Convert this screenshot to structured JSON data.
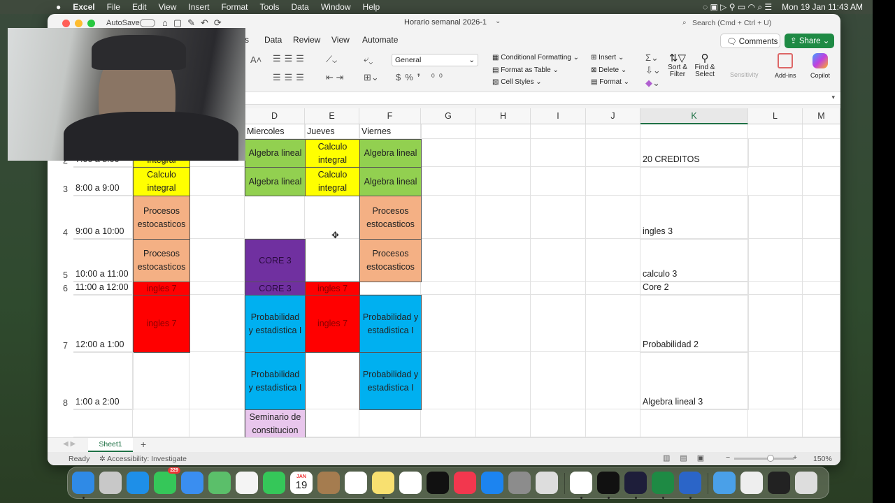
{
  "menubar": {
    "apple": "",
    "app": "Excel",
    "items": [
      "File",
      "Edit",
      "View",
      "Insert",
      "Format",
      "Tools",
      "Data",
      "Window",
      "Help"
    ],
    "datetime": "Mon 19 Jan  11:43 AM"
  },
  "window": {
    "autosave": "AutoSave",
    "title": "Horario semanal 2026-1",
    "search_placeholder": "Search (Cmd + Ctrl + U)",
    "tabs": [
      "s",
      "Data",
      "Review",
      "View",
      "Automate"
    ],
    "comments": "Comments",
    "share": "Share"
  },
  "ribbon": {
    "number_format": "General",
    "conditional_formatting": "Conditional Formatting",
    "format_as_table": "Format as Table",
    "cell_styles": "Cell Styles",
    "insert": "Insert",
    "delete": "Delete",
    "format": "Format",
    "sort_filter": "Sort & Filter",
    "find_select": "Find & Select",
    "sensitivity": "Sensitivity",
    "addins": "Add-ins",
    "copilot": "Copilot"
  },
  "grid": {
    "columns": [
      "D",
      "E",
      "F",
      "G",
      "H",
      "I",
      "J",
      "K",
      "L",
      "M"
    ],
    "selected_column": "K",
    "rows": [
      "2",
      "3",
      "4",
      "5",
      "6",
      "7",
      "8"
    ],
    "fills": {
      "green": "#92d050",
      "yellow": "#ffff00",
      "salmon": "#f4b084",
      "purple": "#7030a0",
      "red": "#ff0000",
      "cyan": "#00b0f0",
      "lavender": "#e8c6ec"
    },
    "cells": [
      {
        "ref": "D1",
        "text": "Miercoles"
      },
      {
        "ref": "E1",
        "text": "Jueves"
      },
      {
        "ref": "F1",
        "text": "Viernes"
      },
      {
        "ref": "A2",
        "text": "7:00 a 8:00"
      },
      {
        "ref": "B2",
        "text": "Calculo integral",
        "fill": "yellow"
      },
      {
        "ref": "D2",
        "text": "Algebra lineal",
        "fill": "green"
      },
      {
        "ref": "E2",
        "text": "Calculo integral",
        "fill": "yellow"
      },
      {
        "ref": "F2",
        "text": "Algebra lineal",
        "fill": "green"
      },
      {
        "ref": "K2",
        "text": "20 CREDITOS"
      },
      {
        "ref": "A3",
        "text": "8:00 a 9:00"
      },
      {
        "ref": "B3",
        "text": "Calculo integral",
        "fill": "yellow"
      },
      {
        "ref": "D3",
        "text": "Algebra lineal",
        "fill": "green"
      },
      {
        "ref": "E3",
        "text": "Calculo integral",
        "fill": "yellow"
      },
      {
        "ref": "F3",
        "text": "Algebra lineal",
        "fill": "green"
      },
      {
        "ref": "A4",
        "text": "9:00 a 10:00"
      },
      {
        "ref": "B4",
        "text": "Procesos estocasticos",
        "fill": "salmon"
      },
      {
        "ref": "F4",
        "text": "Procesos estocasticos",
        "fill": "salmon"
      },
      {
        "ref": "K4",
        "text": "ingles 3"
      },
      {
        "ref": "A5",
        "text": "10:00 a 11:00"
      },
      {
        "ref": "B5",
        "text": "Procesos estocasticos",
        "fill": "salmon"
      },
      {
        "ref": "D5",
        "text": "CORE 3",
        "fill": "purple"
      },
      {
        "ref": "F5",
        "text": "Procesos estocasticos",
        "fill": "salmon"
      },
      {
        "ref": "K5",
        "text": "calculo 3"
      },
      {
        "ref": "A6",
        "text": "11:00 a 12:00"
      },
      {
        "ref": "B6",
        "text": "ingles 7",
        "fill": "red"
      },
      {
        "ref": "D6",
        "text": "CORE 3",
        "fill": "purple"
      },
      {
        "ref": "E6",
        "text": "ingles 7",
        "fill": "red"
      },
      {
        "ref": "K6",
        "text": "Core 2"
      },
      {
        "ref": "A7",
        "text": "12:00 a 1:00"
      },
      {
        "ref": "B7",
        "text": "ingles 7",
        "fill": "red"
      },
      {
        "ref": "D7",
        "text": "Probabilidad y estadistica I",
        "fill": "cyan"
      },
      {
        "ref": "E7",
        "text": "ingles 7",
        "fill": "red"
      },
      {
        "ref": "F7",
        "text": "Probabilidad y estadistica I",
        "fill": "cyan"
      },
      {
        "ref": "K7",
        "text": "Probabilidad 2"
      },
      {
        "ref": "A8",
        "text": "1:00 a 2:00"
      },
      {
        "ref": "D8",
        "text": "Probabilidad y estadistica I",
        "fill": "cyan"
      },
      {
        "ref": "F8",
        "text": "Probabilidad y estadistica I",
        "fill": "cyan"
      },
      {
        "ref": "K8",
        "text": "Algebra lineal 3"
      },
      {
        "ref": "D9",
        "text": "Seminario de constitucion",
        "fill": "lavender"
      }
    ]
  },
  "sheets": {
    "tabs": [
      "Sheet1"
    ],
    "add": "+"
  },
  "status": {
    "ready": "Ready",
    "accessibility": "Accessibility: Investigate",
    "zoom": "150%",
    "zoom_level": 0.6
  },
  "dock": {
    "messages_badge": "229",
    "calendar_month": "JAN",
    "calendar_day": "19",
    "apps": [
      "finder",
      "launchpad",
      "safari",
      "messages",
      "mail",
      "maps",
      "photos",
      "facetime",
      "calendar",
      "contacts",
      "reminders",
      "notes",
      "freeform",
      "tv",
      "music",
      "app-store",
      "system-settings",
      "iphone-mirroring",
      "chrome",
      "spotify",
      "obs",
      "excel",
      "word",
      "folder",
      "downloads",
      "screenshot",
      "trash"
    ]
  }
}
